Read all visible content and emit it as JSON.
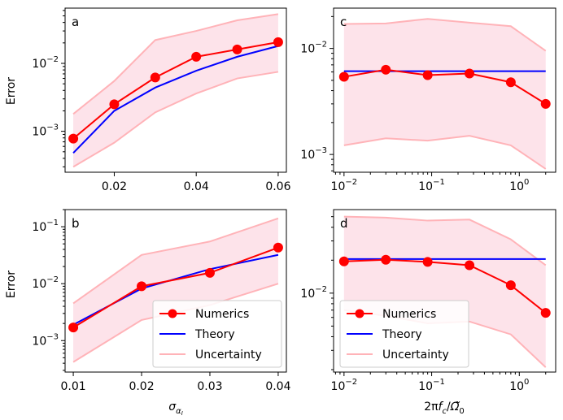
{
  "colors": {
    "numerics": "#ff0000",
    "theory": "#0000ff",
    "uncertainty_line": "#ffb3b8",
    "uncertainty_fill": "#fde3ea"
  },
  "legend": {
    "numerics": "Numerics",
    "theory": "Theory",
    "uncertainty": "Uncertainty"
  },
  "ylabel": "Error",
  "chart_data": [
    {
      "panel": "a",
      "type": "line",
      "xscale": "linear",
      "yscale": "log",
      "xlim": [
        0.008,
        0.062
      ],
      "ylim": [
        0.00025,
        0.065
      ],
      "xticks": [
        0.02,
        0.04,
        0.06
      ],
      "xtick_labels": [
        "0.02",
        "0.04",
        "0.06"
      ],
      "yticks": [
        0.001,
        0.01
      ],
      "ylabel": "Error",
      "xlabel": "",
      "x": [
        0.01,
        0.02,
        0.03,
        0.04,
        0.05,
        0.06
      ],
      "series": [
        {
          "name": "Numerics",
          "values": [
            0.00078,
            0.0025,
            0.0062,
            0.0125,
            0.016,
            0.0205
          ]
        },
        {
          "name": "Theory",
          "values": [
            0.00048,
            0.002,
            0.0044,
            0.0078,
            0.0125,
            0.018
          ]
        },
        {
          "name": "Uncertainty upper",
          "values": [
            0.0018,
            0.0055,
            0.022,
            0.03,
            0.043,
            0.053
          ]
        },
        {
          "name": "Uncertainty lower",
          "values": [
            0.0003,
            0.00068,
            0.0019,
            0.0036,
            0.006,
            0.0075
          ]
        }
      ]
    },
    {
      "panel": "b",
      "type": "line",
      "xscale": "linear",
      "yscale": "log",
      "xlim": [
        0.0088,
        0.0412
      ],
      "ylim": [
        0.00028,
        0.2
      ],
      "xticks": [
        0.01,
        0.02,
        0.03,
        0.04
      ],
      "xtick_labels": [
        "0.01",
        "0.02",
        "0.03",
        "0.04"
      ],
      "yticks": [
        0.001,
        0.01,
        0.1
      ],
      "ylabel": "Error",
      "xlabel": "σ_αI",
      "x": [
        0.01,
        0.02,
        0.03,
        0.04
      ],
      "series": [
        {
          "name": "Numerics",
          "values": [
            0.0017,
            0.009,
            0.0155,
            0.043
          ]
        },
        {
          "name": "Theory",
          "values": [
            0.0019,
            0.0082,
            0.018,
            0.032
          ]
        },
        {
          "name": "Uncertainty upper",
          "values": [
            0.0045,
            0.032,
            0.055,
            0.14
          ]
        },
        {
          "name": "Uncertainty lower",
          "values": [
            0.00042,
            0.0023,
            0.0042,
            0.01
          ]
        }
      ]
    },
    {
      "panel": "c",
      "type": "line",
      "xscale": "log",
      "yscale": "log",
      "xlim": [
        0.0076,
        2.6
      ],
      "ylim": [
        0.00068,
        0.024
      ],
      "xticks": [
        0.01,
        0.1,
        1
      ],
      "yticks": [
        0.001,
        0.01
      ],
      "ylabel": "",
      "xlabel": "",
      "x": [
        0.01,
        0.03,
        0.09,
        0.27,
        0.8,
        2.0
      ],
      "series": [
        {
          "name": "Numerics",
          "values": [
            0.0054,
            0.0063,
            0.0056,
            0.0058,
            0.0048,
            0.003
          ]
        },
        {
          "name": "Theory",
          "values": [
            0.0061,
            0.0061,
            0.0061,
            0.0061,
            0.0061,
            0.0061
          ]
        },
        {
          "name": "Uncertainty upper",
          "values": [
            0.017,
            0.0172,
            0.019,
            0.0175,
            0.0162,
            0.0095
          ]
        },
        {
          "name": "Uncertainty lower",
          "values": [
            0.00122,
            0.00142,
            0.00135,
            0.0015,
            0.00122,
            0.00073
          ]
        }
      ]
    },
    {
      "panel": "d",
      "type": "line",
      "xscale": "log",
      "yscale": "log",
      "xlim": [
        0.0076,
        2.6
      ],
      "ylim": [
        0.0019,
        0.058
      ],
      "xticks": [
        0.01,
        0.1,
        1
      ],
      "yticks": [
        0.01
      ],
      "ylabel": "",
      "xlabel": "2πf_c/Ω̃_0",
      "x": [
        0.01,
        0.03,
        0.09,
        0.27,
        0.8,
        2.0
      ],
      "series": [
        {
          "name": "Numerics",
          "values": [
            0.0195,
            0.0202,
            0.0193,
            0.018,
            0.0118,
            0.0066
          ]
        },
        {
          "name": "Theory",
          "values": [
            0.0205,
            0.0205,
            0.0205,
            0.0205,
            0.0205,
            0.0205
          ]
        },
        {
          "name": "Uncertainty upper",
          "values": [
            0.05,
            0.049,
            0.046,
            0.047,
            0.031,
            0.018
          ]
        },
        {
          "name": "Uncertainty lower",
          "values": [
            0.007,
            0.0062,
            0.0053,
            0.0055,
            0.0042,
            0.0021
          ]
        }
      ]
    }
  ]
}
